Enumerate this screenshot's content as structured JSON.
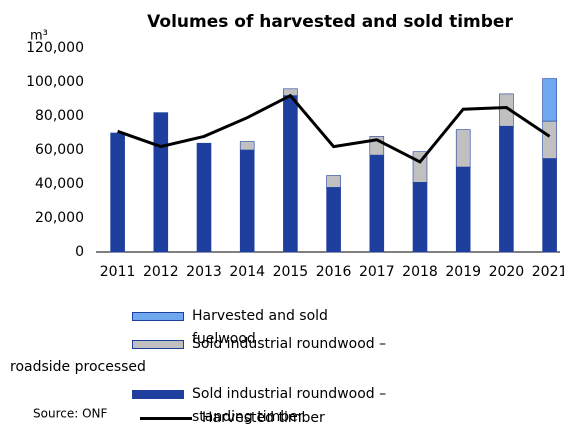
{
  "chart_data": {
    "type": "bar",
    "stacked": true,
    "title": "Volumes of harvested and sold timber",
    "y_unit": "m³",
    "source": "Source: ONF",
    "categories": [
      "2011",
      "2012",
      "2013",
      "2014",
      "2015",
      "2016",
      "2017",
      "2018",
      "2019",
      "2020",
      "2021"
    ],
    "series": [
      {
        "name": "Sold industrial roundwood – standing timber",
        "type": "bar",
        "color": "#1f3f9f",
        "values": [
          70000,
          82000,
          64000,
          60000,
          92000,
          38000,
          57000,
          41000,
          50000,
          74000,
          55000
        ]
      },
      {
        "name": "Sold industrial roundwood – roadside processed",
        "type": "bar",
        "color": "#c0c0c0",
        "values": [
          0,
          0,
          0,
          5000,
          4000,
          7000,
          11000,
          18000,
          22000,
          19000,
          22000
        ]
      },
      {
        "name": "Harvested and sold fuelwood",
        "type": "bar",
        "color": "#6fa8ee",
        "values": [
          0,
          0,
          0,
          0,
          0,
          0,
          0,
          0,
          0,
          0,
          25000
        ]
      },
      {
        "name": "Harvested timber",
        "type": "line",
        "color": "#000000",
        "values": [
          71000,
          62000,
          68000,
          79000,
          92000,
          62000,
          66000,
          53000,
          84000,
          85000,
          68000
        ]
      }
    ],
    "legend_order": [
      2,
      1,
      0,
      3
    ],
    "ylim": [
      0,
      120000
    ],
    "yticks": [
      0,
      {
        "value": 20000,
        "label": "20,000"
      },
      {
        "value": 40000,
        "label": "40,000"
      },
      {
        "value": 60000,
        "label": "60,000"
      },
      {
        "value": 80000,
        "label": "80,000"
      },
      {
        "value": 100000,
        "label": "100,000"
      },
      {
        "value": 120000,
        "label": "120,000"
      }
    ],
    "grid": false
  }
}
